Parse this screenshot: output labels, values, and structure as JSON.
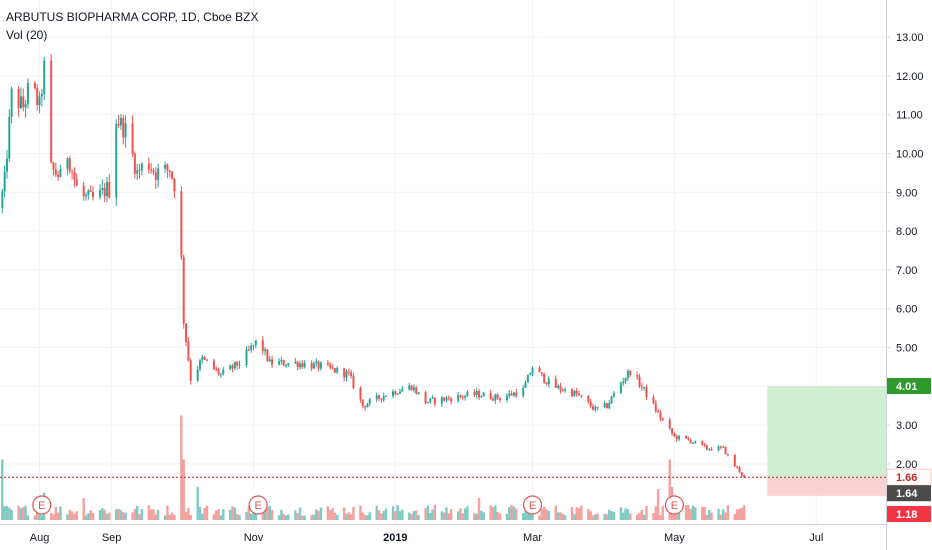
{
  "header": {
    "symbol_line": "ARBUTUS BIOPHARMA CORP, 1D, Cboe BZX",
    "volume_indicator": "Vol (20)"
  },
  "colors": {
    "up": "#26a69a",
    "down": "#ef5350",
    "up_volume": "#7fcbc3",
    "down_volume": "#f4a09e",
    "grid": "#f0f3fa",
    "axis_text": "#131722",
    "target_zone": "#c8ebc9",
    "stop_zone": "#f9c9c8",
    "entry_line": "#c62828",
    "target_label": "#2e9a2e",
    "current_label": "#4a4a4a",
    "stop_label": "#f23645"
  },
  "chart_data": {
    "type": "candlestick",
    "title": "ARBUTUS BIOPHARMA CORP, 1D, Cboe BZX",
    "x_tick_labels": [
      "Aug",
      "Sep",
      "Nov",
      "2019",
      "Mar",
      "May",
      "Jul"
    ],
    "x_tick_dates": [
      "2018-08-01",
      "2018-09-01",
      "2018-11-01",
      "2019-01-01",
      "2019-03-01",
      "2019-05-01",
      "2019-07-01"
    ],
    "x_range": [
      "2018-07-15",
      "2019-07-31"
    ],
    "y_tick_labels": [
      "2.00",
      "3.00",
      "4.00",
      "5.00",
      "6.00",
      "7.00",
      "8.00",
      "9.00",
      "10.00",
      "11.00",
      "12.00",
      "13.00"
    ],
    "ylim": [
      0.9,
      14.0
    ],
    "grid": true,
    "price_keypoints": [
      [
        "2018-07-15",
        8.6
      ],
      [
        "2018-07-17",
        9.3
      ],
      [
        "2018-07-20",
        11.5
      ],
      [
        "2018-07-25",
        11.2
      ],
      [
        "2018-07-28",
        11.8
      ],
      [
        "2018-08-01",
        11.2
      ],
      [
        "2018-08-03",
        12.2
      ],
      [
        "2018-08-06",
        9.6
      ],
      [
        "2018-08-10",
        9.4
      ],
      [
        "2018-08-13",
        10.0
      ],
      [
        "2018-08-18",
        8.9
      ],
      [
        "2018-08-25",
        8.8
      ],
      [
        "2018-08-30",
        9.1
      ],
      [
        "2018-09-01",
        9.0
      ],
      [
        "2018-09-03",
        10.9
      ],
      [
        "2018-09-07",
        10.6
      ],
      [
        "2018-09-12",
        9.5
      ],
      [
        "2018-09-16",
        9.8
      ],
      [
        "2018-09-20",
        9.5
      ],
      [
        "2018-09-26",
        9.6
      ],
      [
        "2018-09-30",
        8.8
      ],
      [
        "2018-10-02",
        5.7
      ],
      [
        "2018-10-05",
        4.2
      ],
      [
        "2018-10-10",
        4.7
      ],
      [
        "2018-10-18",
        4.3
      ],
      [
        "2018-10-26",
        4.6
      ],
      [
        "2018-11-03",
        5.2
      ],
      [
        "2018-11-08",
        4.6
      ],
      [
        "2018-11-20",
        4.6
      ],
      [
        "2018-12-01",
        4.5
      ],
      [
        "2018-12-12",
        4.3
      ],
      [
        "2018-12-18",
        3.5
      ],
      [
        "2018-12-28",
        3.8
      ],
      [
        "2019-01-08",
        4.0
      ],
      [
        "2019-01-14",
        3.6
      ],
      [
        "2019-01-25",
        3.7
      ],
      [
        "2019-02-05",
        3.8
      ],
      [
        "2019-02-15",
        3.7
      ],
      [
        "2019-02-25",
        3.9
      ],
      [
        "2019-03-01",
        4.5
      ],
      [
        "2019-03-04",
        4.3
      ],
      [
        "2019-03-10",
        4.0
      ],
      [
        "2019-03-20",
        3.8
      ],
      [
        "2019-03-28",
        3.4
      ],
      [
        "2019-04-02",
        3.5
      ],
      [
        "2019-04-08",
        4.1
      ],
      [
        "2019-04-12",
        4.4
      ],
      [
        "2019-04-18",
        3.9
      ],
      [
        "2019-04-25",
        3.2
      ],
      [
        "2019-05-01",
        2.7
      ],
      [
        "2019-05-08",
        2.6
      ],
      [
        "2019-05-15",
        2.4
      ],
      [
        "2019-05-22",
        2.4
      ],
      [
        "2019-05-26",
        2.0
      ],
      [
        "2019-05-28",
        1.9
      ],
      [
        "2019-05-31",
        1.64
      ]
    ],
    "volume_spikes": [
      [
        "2018-07-16",
        0.55
      ],
      [
        "2018-08-03",
        0.25
      ],
      [
        "2018-08-20",
        0.2
      ],
      [
        "2018-09-01",
        0.25
      ],
      [
        "2018-10-01",
        0.95
      ],
      [
        "2018-10-02",
        0.55
      ],
      [
        "2018-10-08",
        0.3
      ],
      [
        "2019-02-06",
        0.2
      ],
      [
        "2019-04-29",
        0.55
      ],
      [
        "2019-04-30",
        0.3
      ],
      [
        "2019-04-24",
        0.28
      ]
    ],
    "earnings_markers": [
      "2018-08-02",
      "2018-11-03",
      "2019-03-01",
      "2019-05-01"
    ],
    "earnings_label": "E",
    "position": {
      "entry": 1.66,
      "target": 4.01,
      "stop": 1.18,
      "current": 1.64,
      "start_date": "2019-06-10",
      "end_date": "2019-07-31"
    },
    "price_labels": {
      "target": "4.01",
      "entry": "1.66",
      "current": "1.64",
      "stop": "1.18"
    }
  }
}
